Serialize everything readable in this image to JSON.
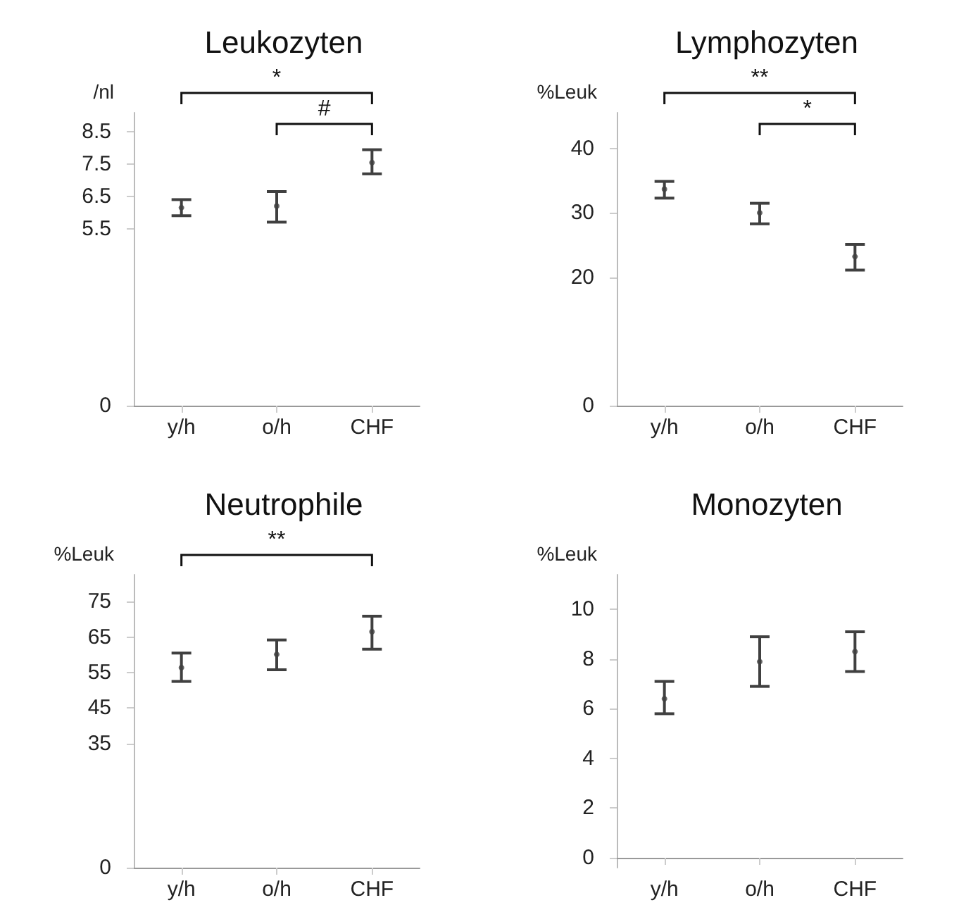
{
  "chart_data": [
    {
      "type": "scatter",
      "title": "Leukozyten",
      "ylabel": "/nl",
      "categories": [
        "y/h",
        "o/h",
        "CHF"
      ],
      "ylim": [
        0,
        9.1
      ],
      "yticks": [
        0,
        5.5,
        6.5,
        7.5,
        8.5
      ],
      "grid": false,
      "marker": "circle",
      "annotations": [
        "*",
        "#"
      ],
      "series": [
        {
          "color": "#404040",
          "values": [
            6.15,
            6.2,
            7.55
          ],
          "errors": [
            [
              5.9,
              6.4
            ],
            [
              5.7,
              6.65
            ],
            [
              7.2,
              7.95
            ]
          ]
        }
      ]
    },
    {
      "type": "scatter",
      "title": "Lymphozyten",
      "ylabel": "%Leuk",
      "categories": [
        "y/h",
        "o/h",
        "CHF"
      ],
      "ylim": [
        0,
        45.6
      ],
      "yticks": [
        0,
        20,
        30,
        40
      ],
      "grid": false,
      "marker": "circle",
      "annotations": [
        "**",
        "*"
      ],
      "series": [
        {
          "color": "#404040",
          "values": [
            33.7,
            30,
            23.2
          ],
          "errors": [
            [
              32.3,
              34.9
            ],
            [
              28.3,
              31.5
            ],
            [
              21.1,
              25.1
            ]
          ]
        }
      ]
    },
    {
      "type": "scatter",
      "title": "Neutrophile",
      "ylabel": "%Leuk",
      "categories": [
        "y/h",
        "o/h",
        "CHF"
      ],
      "ylim": [
        0,
        82.6
      ],
      "yticks": [
        0,
        35,
        45,
        55,
        65,
        75
      ],
      "grid": false,
      "marker": "circle",
      "annotations": [
        "**"
      ],
      "series": [
        {
          "color": "#404040",
          "values": [
            56.4,
            60.1,
            66.5
          ],
          "errors": [
            [
              52.5,
              60.5
            ],
            [
              55.8,
              64.2
            ],
            [
              61.6,
              70.9
            ]
          ]
        }
      ]
    },
    {
      "type": "scatter",
      "title": "Monozyten",
      "ylabel": "%Leuk",
      "categories": [
        "y/h",
        "o/h",
        "CHF"
      ],
      "ylim": [
        -0.4,
        11.4
      ],
      "yticks": [
        0,
        2,
        4,
        6,
        8,
        10
      ],
      "grid": false,
      "marker": "circle",
      "series": [
        {
          "color": "#404040",
          "values": [
            6.4,
            7.9,
            8.3
          ],
          "errors": [
            [
              5.8,
              7.1
            ],
            [
              6.9,
              8.9
            ],
            [
              7.5,
              9.1
            ]
          ]
        }
      ]
    }
  ]
}
